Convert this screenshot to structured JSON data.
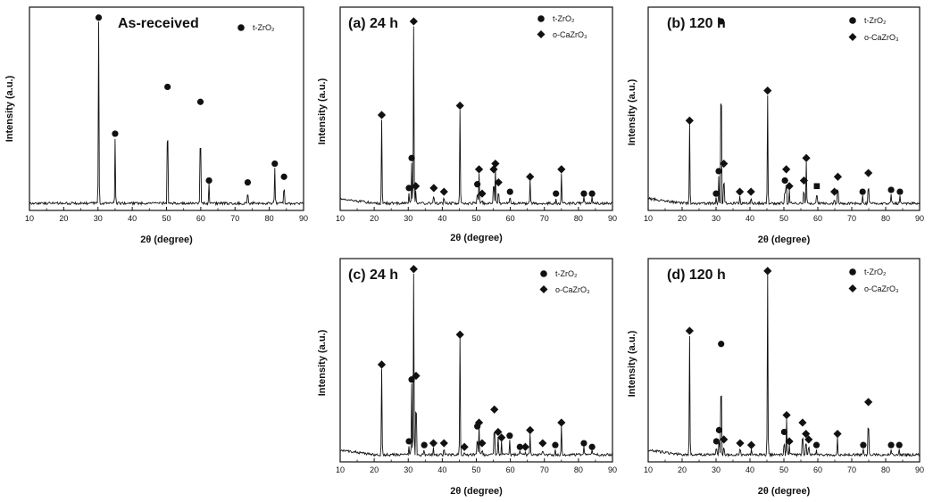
{
  "chart_data": [
    {
      "id": "as-received",
      "type": "line",
      "title": "As-received",
      "xlabel": "2θ (degree)",
      "ylabel": "Intensity (a.u.)",
      "xlim": [
        10,
        90
      ],
      "ylim": [
        0,
        100
      ],
      "xticks": [
        "10",
        "20",
        "30",
        "40",
        "50",
        "60",
        "70",
        "80",
        "90"
      ],
      "legend": [
        {
          "marker": "circle",
          "label": "t-ZrO₂"
        }
      ],
      "peaks": [
        {
          "x": 30.2,
          "y": 97,
          "marker": "circle"
        },
        {
          "x": 35.0,
          "y": 35,
          "marker": "circle"
        },
        {
          "x": 50.3,
          "y": 60,
          "marker": "circle"
        },
        {
          "x": 59.9,
          "y": 52,
          "marker": "circle"
        },
        {
          "x": 62.4,
          "y": 10,
          "marker": "circle"
        },
        {
          "x": 73.7,
          "y": 9,
          "marker": "circle"
        },
        {
          "x": 81.6,
          "y": 19,
          "marker": "circle"
        },
        {
          "x": 84.3,
          "y": 12,
          "marker": "circle"
        }
      ]
    },
    {
      "id": "a-24h",
      "type": "line",
      "title": "(a) 24 h",
      "xlabel": "2θ (degree)",
      "ylabel": "Intensity (a.u.)",
      "xlim": [
        10,
        90
      ],
      "ylim": [
        0,
        100
      ],
      "xticks": [
        "10",
        "20",
        "30",
        "40",
        "50",
        "60",
        "70",
        "80",
        "90"
      ],
      "legend": [
        {
          "marker": "circle",
          "label": "t-ZrO₂"
        },
        {
          "marker": "diamond",
          "label": "o-CaZrO₃"
        }
      ],
      "peaks": [
        {
          "x": 22.2,
          "y": 45,
          "marker": "diamond"
        },
        {
          "x": 30.2,
          "y": 6,
          "marker": "circle"
        },
        {
          "x": 31.0,
          "y": 22,
          "marker": "circle"
        },
        {
          "x": 31.6,
          "y": 95,
          "marker": "diamond"
        },
        {
          "x": 32.2,
          "y": 7,
          "marker": "diamond"
        },
        {
          "x": 37.5,
          "y": 6,
          "marker": "diamond"
        },
        {
          "x": 40.5,
          "y": 4,
          "marker": "diamond"
        },
        {
          "x": 45.2,
          "y": 50,
          "marker": "diamond"
        },
        {
          "x": 50.3,
          "y": 8,
          "marker": "circle"
        },
        {
          "x": 50.8,
          "y": 16,
          "marker": "diamond"
        },
        {
          "x": 51.7,
          "y": 3,
          "marker": "diamond"
        },
        {
          "x": 55.1,
          "y": 16,
          "marker": "diamond"
        },
        {
          "x": 55.6,
          "y": 19,
          "marker": "diamond"
        },
        {
          "x": 56.5,
          "y": 9,
          "marker": "diamond"
        },
        {
          "x": 59.9,
          "y": 4,
          "marker": "circle"
        },
        {
          "x": 65.8,
          "y": 12,
          "marker": "diamond"
        },
        {
          "x": 73.4,
          "y": 3,
          "marker": "circle"
        },
        {
          "x": 75.0,
          "y": 16,
          "marker": "diamond"
        },
        {
          "x": 81.6,
          "y": 3,
          "marker": "circle"
        },
        {
          "x": 84.0,
          "y": 3,
          "marker": "circle"
        }
      ]
    },
    {
      "id": "b-120h",
      "type": "line",
      "title": "(b) 120 h",
      "xlabel": "2θ (degree)",
      "ylabel": "Intensity (a.u.)",
      "xlim": [
        10,
        90
      ],
      "ylim": [
        0,
        100
      ],
      "xticks": [
        "10",
        "20",
        "30",
        "40",
        "50",
        "60",
        "70",
        "80",
        "90"
      ],
      "legend": [
        {
          "marker": "circle",
          "label": "t-ZrO₂"
        },
        {
          "marker": "diamond",
          "label": "o-CaZrO₃"
        }
      ],
      "peaks": [
        {
          "x": 22.2,
          "y": 42,
          "marker": "diamond"
        },
        {
          "x": 30.0,
          "y": 3,
          "marker": "circle"
        },
        {
          "x": 30.8,
          "y": 15,
          "marker": "circle"
        },
        {
          "x": 31.5,
          "y": 95,
          "marker": "circle"
        },
        {
          "x": 32.3,
          "y": 19,
          "marker": "diamond"
        },
        {
          "x": 37.0,
          "y": 4,
          "marker": "diamond"
        },
        {
          "x": 40.3,
          "y": 4,
          "marker": "diamond"
        },
        {
          "x": 45.2,
          "y": 58,
          "marker": "diamond"
        },
        {
          "x": 50.3,
          "y": 10,
          "marker": "circle"
        },
        {
          "x": 50.7,
          "y": 16,
          "marker": "diamond"
        },
        {
          "x": 51.6,
          "y": 7,
          "marker": "diamond"
        },
        {
          "x": 55.9,
          "y": 10,
          "marker": "diamond"
        },
        {
          "x": 56.6,
          "y": 22,
          "marker": "diamond"
        },
        {
          "x": 59.7,
          "y": 7,
          "marker": "square"
        },
        {
          "x": 64.9,
          "y": 4,
          "marker": "diamond"
        },
        {
          "x": 65.9,
          "y": 12,
          "marker": "diamond"
        },
        {
          "x": 73.2,
          "y": 4,
          "marker": "circle"
        },
        {
          "x": 74.9,
          "y": 14,
          "marker": "diamond"
        },
        {
          "x": 81.6,
          "y": 5,
          "marker": "circle"
        },
        {
          "x": 84.2,
          "y": 4,
          "marker": "circle"
        }
      ]
    },
    {
      "id": "c-24h",
      "type": "line",
      "title": "(c) 24 h",
      "xlabel": "2θ (degree)",
      "ylabel": "Intensity (a.u.)",
      "xlim": [
        10,
        90
      ],
      "ylim": [
        0,
        100
      ],
      "xticks": [
        "10",
        "20",
        "30",
        "40",
        "50",
        "60",
        "70",
        "80",
        "90"
      ],
      "legend": [
        {
          "marker": "circle",
          "label": "t-ZrO₂"
        },
        {
          "marker": "diamond",
          "label": "o-CaZrO₃"
        }
      ],
      "peaks": [
        {
          "x": 22.2,
          "y": 46,
          "marker": "diamond"
        },
        {
          "x": 30.2,
          "y": 5,
          "marker": "circle"
        },
        {
          "x": 31.0,
          "y": 38,
          "marker": "circle"
        },
        {
          "x": 31.6,
          "y": 97,
          "marker": "diamond"
        },
        {
          "x": 32.3,
          "y": 40,
          "marker": "diamond"
        },
        {
          "x": 34.7,
          "y": 3,
          "marker": "circle"
        },
        {
          "x": 37.4,
          "y": 4,
          "marker": "diamond"
        },
        {
          "x": 40.5,
          "y": 4,
          "marker": "diamond"
        },
        {
          "x": 45.2,
          "y": 62,
          "marker": "diamond"
        },
        {
          "x": 46.5,
          "y": 2,
          "marker": "diamond"
        },
        {
          "x": 50.3,
          "y": 13,
          "marker": "circle"
        },
        {
          "x": 50.8,
          "y": 15,
          "marker": "diamond"
        },
        {
          "x": 51.7,
          "y": 4,
          "marker": "diamond"
        },
        {
          "x": 55.3,
          "y": 22,
          "marker": "diamond"
        },
        {
          "x": 56.4,
          "y": 10,
          "marker": "diamond"
        },
        {
          "x": 57.4,
          "y": 7,
          "marker": "diamond"
        },
        {
          "x": 59.8,
          "y": 8,
          "marker": "circle"
        },
        {
          "x": 62.8,
          "y": 2,
          "marker": "circle"
        },
        {
          "x": 64.4,
          "y": 2,
          "marker": "diamond"
        },
        {
          "x": 65.8,
          "y": 11,
          "marker": "diamond"
        },
        {
          "x": 69.5,
          "y": 4,
          "marker": "diamond"
        },
        {
          "x": 73.2,
          "y": 3,
          "marker": "circle"
        },
        {
          "x": 75.0,
          "y": 15,
          "marker": "diamond"
        },
        {
          "x": 81.6,
          "y": 4,
          "marker": "circle"
        },
        {
          "x": 84.0,
          "y": 2,
          "marker": "circle"
        }
      ]
    },
    {
      "id": "d-120h",
      "type": "line",
      "title": "(d) 120 h",
      "xlabel": "2θ (degree)",
      "ylabel": "Intensity (a.u.)",
      "xlim": [
        10,
        90
      ],
      "ylim": [
        0,
        100
      ],
      "xticks": [
        "10",
        "20",
        "30",
        "40",
        "50",
        "60",
        "70",
        "80",
        "90"
      ],
      "legend": [
        {
          "marker": "circle",
          "label": "t-ZrO₂"
        },
        {
          "marker": "diamond",
          "label": "o-CaZrO₃"
        }
      ],
      "peaks": [
        {
          "x": 22.2,
          "y": 64,
          "marker": "diamond"
        },
        {
          "x": 30.1,
          "y": 5,
          "marker": "circle"
        },
        {
          "x": 30.9,
          "y": 11,
          "marker": "circle"
        },
        {
          "x": 31.5,
          "y": 57,
          "marker": "circle"
        },
        {
          "x": 32.3,
          "y": 6,
          "marker": "diamond"
        },
        {
          "x": 37.1,
          "y": 4,
          "marker": "diamond"
        },
        {
          "x": 40.4,
          "y": 3,
          "marker": "diamond"
        },
        {
          "x": 45.2,
          "y": 96,
          "marker": "diamond"
        },
        {
          "x": 50.1,
          "y": 10,
          "marker": "circle"
        },
        {
          "x": 50.8,
          "y": 19,
          "marker": "diamond"
        },
        {
          "x": 51.6,
          "y": 5,
          "marker": "diamond"
        },
        {
          "x": 55.5,
          "y": 15,
          "marker": "diamond"
        },
        {
          "x": 56.5,
          "y": 9,
          "marker": "diamond"
        },
        {
          "x": 57.3,
          "y": 6,
          "marker": "diamond"
        },
        {
          "x": 59.6,
          "y": 3,
          "marker": "circle"
        },
        {
          "x": 65.8,
          "y": 9,
          "marker": "diamond"
        },
        {
          "x": 73.4,
          "y": 3,
          "marker": "circle"
        },
        {
          "x": 74.9,
          "y": 26,
          "marker": "diamond"
        },
        {
          "x": 81.6,
          "y": 3,
          "marker": "circle"
        },
        {
          "x": 84.0,
          "y": 3,
          "marker": "circle"
        }
      ]
    }
  ]
}
